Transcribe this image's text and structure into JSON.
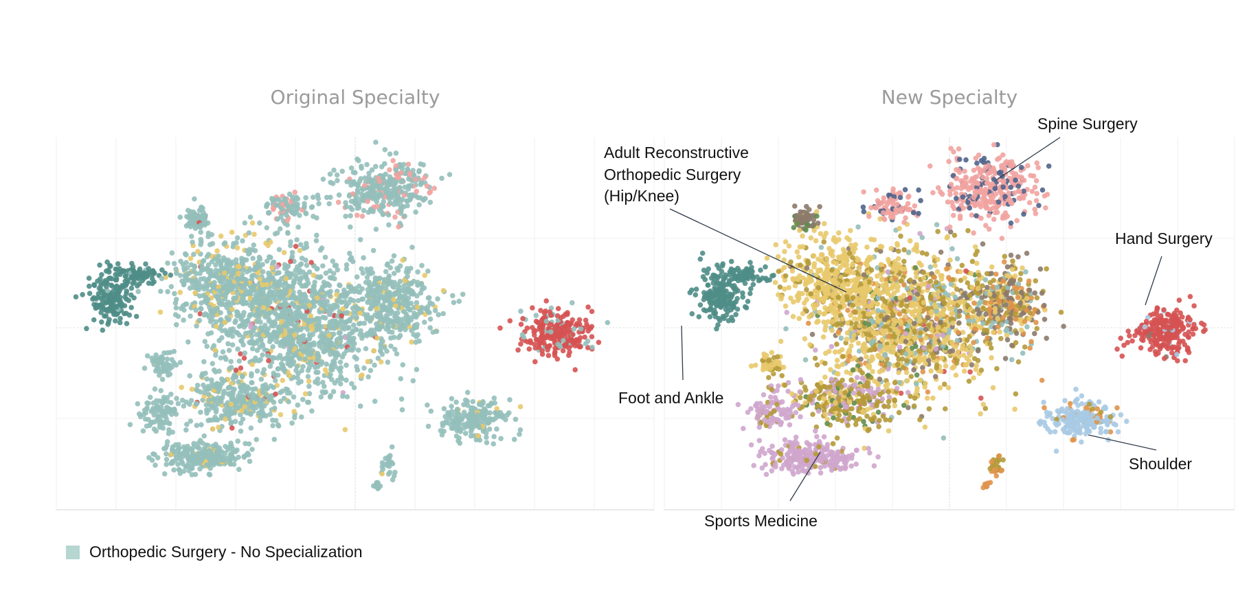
{
  "chart_data": [
    {
      "type": "scatter",
      "title": "Original Specialty",
      "clusters": [
        {
          "name": "Foot and Ankle",
          "color": "#4f8d87"
        },
        {
          "name": "Spine Surgery",
          "color": "#f1a3a0"
        },
        {
          "name": "Hand Surgery",
          "color": "#d65252"
        },
        {
          "name": "Orthopedic Surgery - No Specialization",
          "color": "#93bfba"
        },
        {
          "name": "Adult Reconstructive Orthopedic Surgery (Hip/Knee)",
          "color": "#e8c96c"
        }
      ]
    },
    {
      "type": "scatter",
      "title": "New Specialty",
      "annotations": [
        {
          "label": "Spine Surgery"
        },
        {
          "label": "Adult Reconstructive Orthopedic Surgery (Hip/Knee)",
          "lines": [
            "Adult Reconstructive",
            "Orthopedic Surgery",
            "(Hip/Knee)"
          ]
        },
        {
          "label": "Hand Surgery"
        },
        {
          "label": "Foot and Ankle"
        },
        {
          "label": "Shoulder"
        },
        {
          "label": "Sports Medicine"
        }
      ],
      "colors": {
        "spine": "#f1a3a0",
        "spine_dark": "#4f648c",
        "hip_knee": "#e8c96c",
        "foot_ankle": "#4f8d87",
        "hand": "#d65252",
        "shoulder": "#a8cae3",
        "sports": "#cfa6cd",
        "trauma": "#b59a3a",
        "misc_brown": "#8c7a6c",
        "misc_orange": "#e0934a",
        "misc_green": "#5f8d4e"
      }
    }
  ],
  "legend": {
    "label": "Orthopedic Surgery - No Specialization",
    "color": "#b5d6d1"
  }
}
